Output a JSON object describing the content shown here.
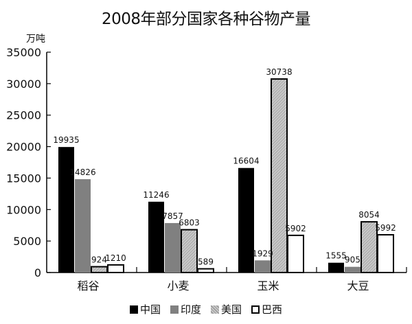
{
  "title": "2008年部分国家各种谷物产量",
  "unit_label": "万吨",
  "chart_data": {
    "type": "bar",
    "title": "2008年部分国家各种谷物产量",
    "xlabel": "",
    "ylabel": "万吨",
    "ylim": [
      0,
      35000
    ],
    "yticks": [
      0,
      5000,
      10000,
      15000,
      20000,
      25000,
      30000,
      35000
    ],
    "grid": false,
    "legend_position": "bottom",
    "categories": [
      "稻谷",
      "小麦",
      "玉米",
      "大豆"
    ],
    "series": [
      {
        "name": "中国",
        "values": [
          19935,
          11246,
          16604,
          1555
        ],
        "fill": "#000000"
      },
      {
        "name": "印度",
        "values": [
          14826,
          7857,
          1929,
          905
        ],
        "fill": "#808080"
      },
      {
        "name": "美国",
        "values": [
          924,
          6803,
          30738,
          8054
        ],
        "fill": "hatched-gray"
      },
      {
        "name": "巴西",
        "values": [
          1210,
          589,
          5902,
          5992
        ],
        "fill": "#ffffff"
      }
    ]
  },
  "legend": [
    {
      "label": "中国"
    },
    {
      "label": "印度"
    },
    {
      "label": "美国"
    },
    {
      "label": "巴西"
    }
  ]
}
